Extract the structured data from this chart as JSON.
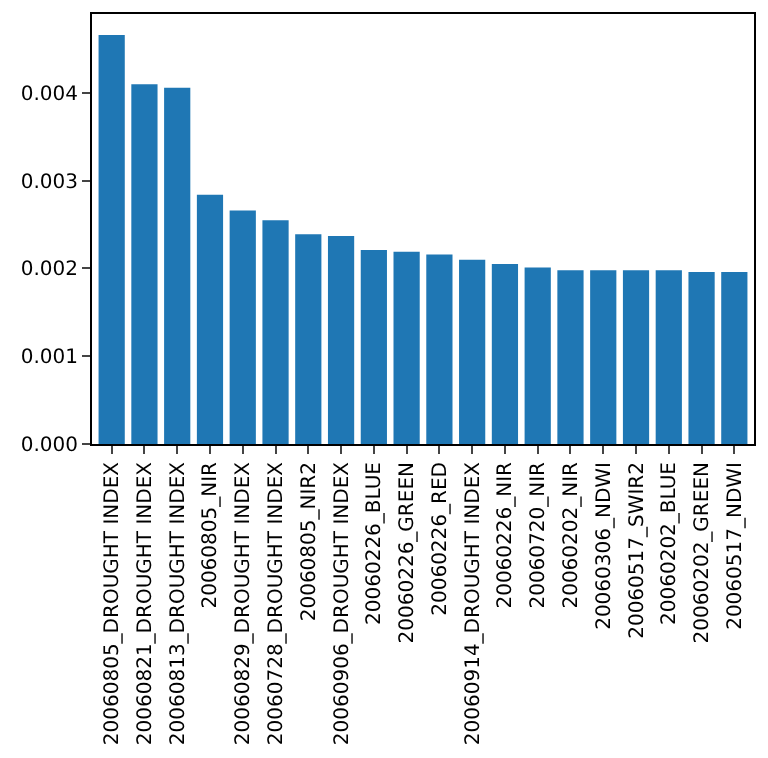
{
  "chart_data": {
    "type": "bar",
    "categories": [
      "20060805_DROUGHT INDEX",
      "20060821_DROUGHT INDEX",
      "20060813_DROUGHT INDEX",
      "20060805_NIR",
      "20060829_DROUGHT INDEX",
      "20060728_DROUGHT INDEX",
      "20060805_NIR2",
      "20060906_DROUGHT INDEX",
      "20060226_BLUE",
      "20060226_GREEN",
      "20060226_RED",
      "20060914_DROUGHT INDEX",
      "20060226_NIR",
      "20060720_NIR",
      "20060202_NIR",
      "20060306_NDWI",
      "20060517_SWIR2",
      "20060202_BLUE",
      "20060202_GREEN",
      "20060517_NDWI"
    ],
    "values": [
      0.00466,
      0.0041,
      0.00406,
      0.00284,
      0.00266,
      0.00255,
      0.00239,
      0.00237,
      0.00221,
      0.00219,
      0.00216,
      0.0021,
      0.00205,
      0.00201,
      0.00198,
      0.00198,
      0.00198,
      0.00198,
      0.00196,
      0.00196
    ],
    "color": "#1f77b4",
    "ylim": [
      0,
      0.0049
    ],
    "yticks": [
      {
        "value": 0,
        "label": "0.000"
      },
      {
        "value": 0.001,
        "label": "0.001"
      },
      {
        "value": 0.002,
        "label": "0.002"
      },
      {
        "value": 0.003,
        "label": "0.003"
      },
      {
        "value": 0.004,
        "label": "0.004"
      }
    ]
  }
}
